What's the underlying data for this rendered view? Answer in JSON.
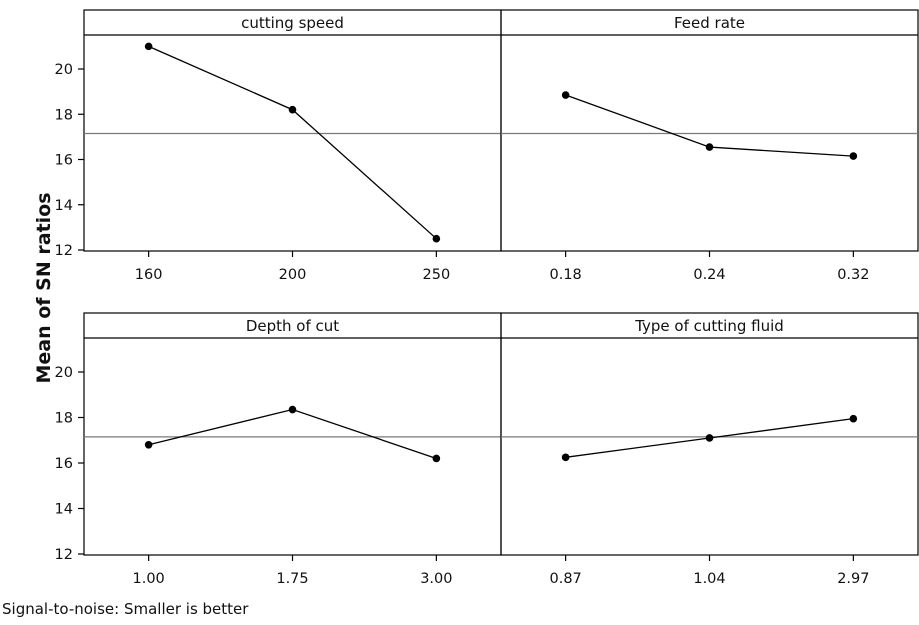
{
  "chart_data": {
    "type": "line",
    "ylabel": "Mean of SN ratios",
    "footnote": "Signal-to-noise: Smaller is better",
    "ylim": [
      12,
      22
    ],
    "yticks": [
      "12",
      "14",
      "16",
      "18",
      "20"
    ],
    "overall_mean": 17.15,
    "grid": false,
    "panels": [
      {
        "title": "cutting speed",
        "categories": [
          "160",
          "200",
          "250"
        ],
        "values": [
          21.0,
          18.2,
          12.5
        ]
      },
      {
        "title": "Feed rate",
        "categories": [
          "0.18",
          "0.24",
          "0.32"
        ],
        "values": [
          18.85,
          16.55,
          16.15
        ]
      },
      {
        "title": "Depth of cut",
        "categories": [
          "1.00",
          "1.75",
          "3.00"
        ],
        "values": [
          16.8,
          18.35,
          16.2
        ]
      },
      {
        "title": "Type of cutting fluid",
        "categories": [
          "0.87",
          "1.04",
          "2.97"
        ],
        "values": [
          16.25,
          17.1,
          17.95
        ]
      }
    ]
  }
}
